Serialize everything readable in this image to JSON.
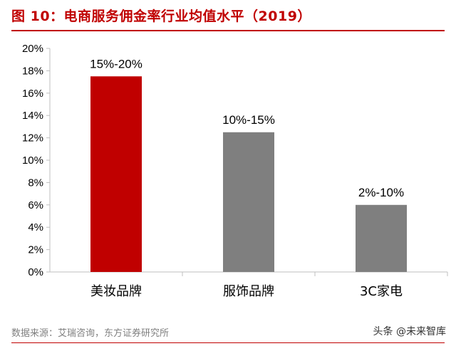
{
  "header": {
    "title": "图 10：电商服务佣金率行业均值水平（2019）"
  },
  "footer": {
    "source": "数据来源：艾瑞咨询，东方证券研究所",
    "watermark": "头条 @未来智库"
  },
  "colors": {
    "accent": "#c00000",
    "highlight_bar": "#c00000",
    "bar": "#7f7f7f",
    "axis": "#bfbfbf"
  },
  "chart_data": {
    "type": "bar",
    "title": "",
    "xlabel": "",
    "ylabel": "",
    "categories": [
      "美妆品牌",
      "服饰品牌",
      "3C家电"
    ],
    "values": [
      17.5,
      12.5,
      6
    ],
    "data_labels": [
      "15%-20%",
      "10%-15%",
      "2%-10%"
    ],
    "ylim": [
      0,
      20
    ],
    "yticks": [
      "0%",
      "2%",
      "4%",
      "6%",
      "8%",
      "10%",
      "12%",
      "14%",
      "16%",
      "18%",
      "20%"
    ],
    "grid": false,
    "legend": "none"
  }
}
